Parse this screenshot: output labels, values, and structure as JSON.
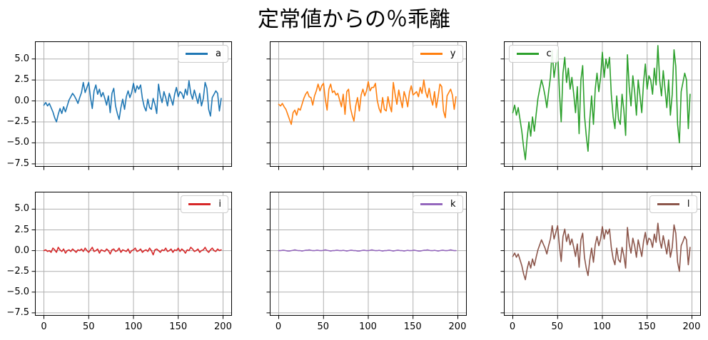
{
  "chart_data": {
    "type": "line",
    "title": "定常値からの％乖離",
    "layout": {
      "rows": 2,
      "cols": 3,
      "sharex": true,
      "sharey": true,
      "grid": true,
      "grid_color": "#b0b0b0",
      "spine_color": "#000000",
      "background": "#ffffff"
    },
    "xlim": [
      -10,
      210
    ],
    "ylim": [
      -7.85,
      7.1
    ],
    "xticks": [
      0,
      50,
      100,
      150,
      200
    ],
    "yticks": [
      5.0,
      2.5,
      0.0,
      -2.5,
      -5.0,
      -7.5
    ],
    "xtick_labels": [
      "0",
      "50",
      "100",
      "150",
      "200"
    ],
    "ytick_labels": [
      "5.0",
      "2.5",
      "0.0",
      "−2.5",
      "−5.0",
      "−7.5"
    ],
    "x_step": 2,
    "charts": [
      {
        "legend_label": "a",
        "color": "#1f77b4",
        "legend_loc": "upper-right",
        "values": [
          -0.5,
          -0.2,
          -0.6,
          -0.3,
          -0.8,
          -1.3,
          -2.0,
          -2.5,
          -1.6,
          -0.9,
          -1.5,
          -0.7,
          -1.3,
          -0.6,
          0.1,
          0.5,
          0.9,
          0.6,
          0.2,
          -0.3,
          0.4,
          1.0,
          2.2,
          1.0,
          1.6,
          2.2,
          0.4,
          -0.9,
          1.2,
          1.9,
          0.8,
          1.4,
          0.5,
          1.0,
          0.3,
          -0.5,
          0.6,
          -1.4,
          0.9,
          1.5,
          -0.6,
          -1.5,
          -2.2,
          -0.8,
          0.2,
          -1.0,
          0.5,
          1.2,
          0.4,
          1.0,
          2.1,
          1.0,
          1.8,
          1.4,
          1.9,
          0.3,
          -0.7,
          -1.2,
          0.2,
          -0.8,
          -1.0,
          0.3,
          -0.4,
          -1.5,
          2.0,
          0.6,
          -0.2,
          1.1,
          0.4,
          -0.6,
          0.9,
          0.2,
          -0.5,
          0.8,
          1.6,
          0.5,
          1.1,
          0.9,
          0.3,
          1.4,
          0.7,
          2.4,
          0.9,
          0.2,
          1.3,
          0.5,
          -0.3,
          0.9,
          -0.6,
          0.3,
          2.2,
          1.5,
          -1.0,
          -1.8,
          0.4,
          0.8,
          1.2,
          0.9,
          -1.2,
          0.3
        ]
      },
      {
        "legend_label": "y",
        "color": "#ff7f0e",
        "legend_loc": "upper-right",
        "values": [
          -0.4,
          -0.6,
          -0.3,
          -0.7,
          -1.0,
          -1.6,
          -2.2,
          -2.8,
          -1.4,
          -1.1,
          -1.7,
          -0.9,
          -1.1,
          -0.4,
          0.3,
          0.8,
          1.1,
          0.5,
          0.4,
          -0.5,
          0.6,
          1.2,
          2.0,
          1.2,
          1.8,
          2.1,
          0.2,
          -1.1,
          1.4,
          2.0,
          1.0,
          1.2,
          0.7,
          0.9,
          0.1,
          -0.7,
          0.8,
          -1.6,
          1.1,
          1.4,
          -0.8,
          -1.7,
          -2.4,
          -0.6,
          0.4,
          -1.2,
          0.7,
          1.4,
          0.6,
          1.2,
          2.3,
          1.2,
          1.6,
          1.6,
          2.1,
          0.1,
          -0.9,
          -1.4,
          0.4,
          -1.0,
          -1.2,
          0.5,
          -0.6,
          -1.3,
          2.2,
          0.8,
          -0.4,
          1.3,
          0.2,
          -0.8,
          1.1,
          0.4,
          -0.7,
          1.0,
          1.8,
          0.7,
          0.9,
          1.1,
          0.5,
          1.6,
          0.9,
          2.5,
          1.1,
          0.4,
          1.5,
          0.3,
          -0.5,
          1.1,
          -0.8,
          0.5,
          2.0,
          1.7,
          -1.2,
          -2.0,
          0.6,
          1.0,
          1.4,
          0.7,
          -1.0,
          0.5
        ]
      },
      {
        "legend_label": "c",
        "color": "#2ca02c",
        "legend_loc": "upper-left",
        "values": [
          -1.4,
          -0.5,
          -1.7,
          -0.8,
          -2.2,
          -3.6,
          -5.5,
          -7.0,
          -4.4,
          -2.5,
          -4.2,
          -1.9,
          -3.6,
          -1.6,
          0.3,
          1.4,
          2.5,
          1.7,
          0.6,
          -0.8,
          1.1,
          2.8,
          6.0,
          2.8,
          4.4,
          6.1,
          1.1,
          -2.5,
          3.3,
          5.2,
          2.2,
          3.9,
          1.4,
          2.8,
          0.8,
          -1.4,
          1.7,
          -3.9,
          2.5,
          4.2,
          -1.7,
          -4.1,
          -6.0,
          -2.2,
          0.6,
          -2.8,
          1.4,
          3.3,
          1.1,
          2.8,
          5.8,
          2.8,
          5.0,
          3.9,
          5.2,
          0.8,
          -1.9,
          -3.3,
          0.6,
          -2.2,
          -2.8,
          0.8,
          -1.1,
          -4.1,
          5.5,
          1.7,
          -0.6,
          3.0,
          1.1,
          -1.7,
          2.5,
          0.6,
          -1.4,
          2.2,
          4.4,
          1.4,
          3.0,
          2.5,
          0.8,
          3.9,
          1.9,
          6.6,
          2.5,
          0.6,
          3.6,
          1.4,
          -0.8,
          2.5,
          -1.7,
          0.8,
          6.1,
          4.1,
          -2.8,
          -5.0,
          1.1,
          2.2,
          3.3,
          2.5,
          -3.3,
          0.8
        ]
      },
      {
        "legend_label": "i",
        "color": "#d62728",
        "legend_loc": "upper-right",
        "values": [
          0.0,
          0.1,
          -0.1,
          0.0,
          -0.2,
          0.3,
          0.1,
          -0.2,
          0.4,
          0.1,
          -0.1,
          0.2,
          -0.3,
          0.0,
          0.1,
          -0.1,
          0.2,
          0.0,
          -0.2,
          0.1,
          0.0,
          0.2,
          -0.1,
          0.3,
          0.0,
          -0.2,
          0.1,
          0.4,
          -0.1,
          0.0,
          0.2,
          -0.3,
          0.1,
          0.0,
          -0.1,
          0.2,
          0.0,
          -0.4,
          0.1,
          0.2,
          -0.1,
          0.0,
          0.3,
          -0.2,
          0.1,
          0.0,
          -0.1,
          0.2,
          -0.3,
          0.0,
          0.1,
          0.3,
          -0.1,
          0.0,
          0.2,
          -0.2,
          0.0,
          0.1,
          -0.1,
          0.3,
          0.0,
          -0.5,
          0.1,
          0.2,
          0.0,
          -0.2,
          0.1,
          0.0,
          0.3,
          -0.1,
          0.0,
          0.2,
          -0.2,
          0.1,
          0.0,
          0.3,
          -0.1,
          0.2,
          0.0,
          -0.3,
          0.1,
          0.0,
          0.4,
          0.2,
          -0.1,
          0.0,
          0.2,
          -0.2,
          0.0,
          0.1,
          0.4,
          0.0,
          -0.2,
          0.1,
          0.3,
          0.0,
          -0.1,
          0.2,
          0.0,
          0.1
        ]
      },
      {
        "legend_label": "k",
        "color": "#9467bd",
        "legend_loc": "upper-right",
        "values": [
          0.0,
          0.0,
          0.05,
          0.05,
          0.0,
          -0.05,
          -0.05,
          0.0,
          0.05,
          0.1,
          0.05,
          0.0,
          0.0,
          -0.05,
          0.0,
          0.05,
          0.05,
          0.1,
          0.05,
          0.0,
          0.0,
          0.05,
          0.05,
          0.0,
          0.0,
          0.05,
          0.1,
          0.05,
          0.0,
          -0.05,
          0.0,
          0.0,
          0.05,
          0.05,
          0.0,
          0.0,
          0.05,
          0.0,
          -0.05,
          0.0,
          0.05,
          0.05,
          0.0,
          0.0,
          -0.05,
          -0.05,
          0.0,
          0.05,
          0.05,
          0.0,
          0.0,
          0.05,
          0.1,
          0.05,
          0.0,
          0.0,
          0.05,
          0.0,
          -0.05,
          0.0,
          0.0,
          0.05,
          0.05,
          0.0,
          -0.05,
          0.0,
          0.05,
          0.05,
          0.0,
          0.0,
          -0.05,
          0.0,
          0.05,
          0.0,
          0.0,
          0.05,
          0.05,
          0.0,
          -0.05,
          -0.05,
          0.0,
          0.05,
          0.05,
          0.1,
          0.05,
          0.0,
          0.0,
          0.05,
          0.0,
          -0.05,
          0.0,
          0.05,
          0.05,
          0.0,
          0.0,
          0.05,
          0.1,
          0.05,
          0.0,
          0.0
        ]
      },
      {
        "legend_label": "l",
        "color": "#8c564b",
        "legend_loc": "upper-right",
        "values": [
          -0.7,
          -0.3,
          -0.8,
          -0.4,
          -1.1,
          -1.8,
          -2.8,
          -3.5,
          -2.2,
          -1.3,
          -2.1,
          -1.0,
          -1.8,
          -0.8,
          0.1,
          0.7,
          1.3,
          0.8,
          0.3,
          -0.4,
          0.6,
          1.4,
          3.0,
          1.4,
          2.2,
          3.0,
          0.6,
          -1.3,
          1.7,
          2.6,
          1.1,
          2.0,
          0.7,
          1.4,
          0.4,
          -0.7,
          0.8,
          -2.0,
          1.3,
          2.1,
          -0.8,
          -2.1,
          -3.0,
          -1.1,
          0.3,
          -1.4,
          0.7,
          1.7,
          0.6,
          1.4,
          2.9,
          1.4,
          2.5,
          2.0,
          2.6,
          0.4,
          -1.0,
          -1.7,
          0.3,
          -1.1,
          -1.4,
          0.4,
          -0.6,
          -2.1,
          2.8,
          0.8,
          -0.3,
          1.5,
          0.6,
          -0.8,
          1.3,
          0.3,
          -0.7,
          1.1,
          2.2,
          0.7,
          1.5,
          1.3,
          0.4,
          2.0,
          1.0,
          3.3,
          1.3,
          0.3,
          1.8,
          0.7,
          -0.4,
          1.3,
          -0.8,
          0.4,
          3.1,
          2.1,
          -1.4,
          -2.5,
          0.6,
          1.1,
          1.7,
          1.3,
          -1.7,
          0.4
        ]
      }
    ]
  }
}
